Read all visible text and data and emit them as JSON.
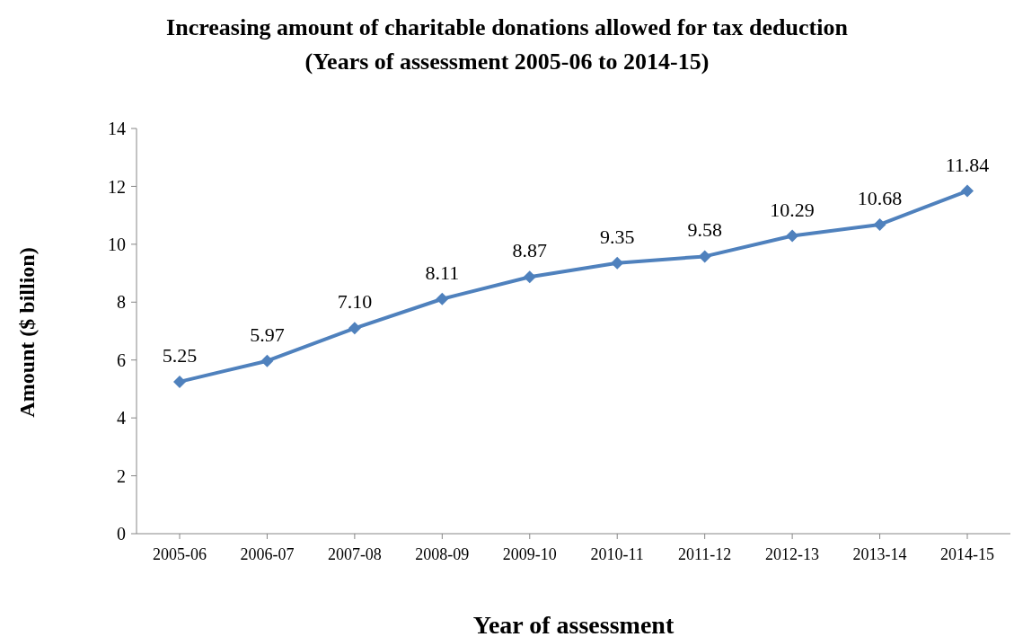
{
  "chart_data": {
    "type": "line",
    "title": "Increasing amount of charitable donations allowed for tax deduction",
    "subtitle": "(Years of assessment 2005-06 to 2014-15)",
    "xlabel": "Year of assessment",
    "ylabel": "Amount ($ billion)",
    "categories": [
      "2005-06",
      "2006-07",
      "2007-08",
      "2008-09",
      "2009-10",
      "2010-11",
      "2011-12",
      "2012-13",
      "2013-14",
      "2014-15"
    ],
    "series": [
      {
        "color": "#4f81bd",
        "values": [
          5.25,
          5.97,
          7.1,
          8.11,
          8.87,
          9.35,
          9.58,
          10.29,
          10.68,
          11.84
        ],
        "value_labels": [
          "5.25",
          "5.97",
          "7.10",
          "8.11",
          "8.87",
          "9.35",
          "9.58",
          "10.29",
          "10.68",
          "11.84"
        ]
      }
    ],
    "ylim": [
      0,
      14
    ],
    "yticks": [
      0,
      2,
      4,
      6,
      8,
      10,
      12,
      14
    ],
    "marker": "diamond",
    "line_style": "solid"
  }
}
